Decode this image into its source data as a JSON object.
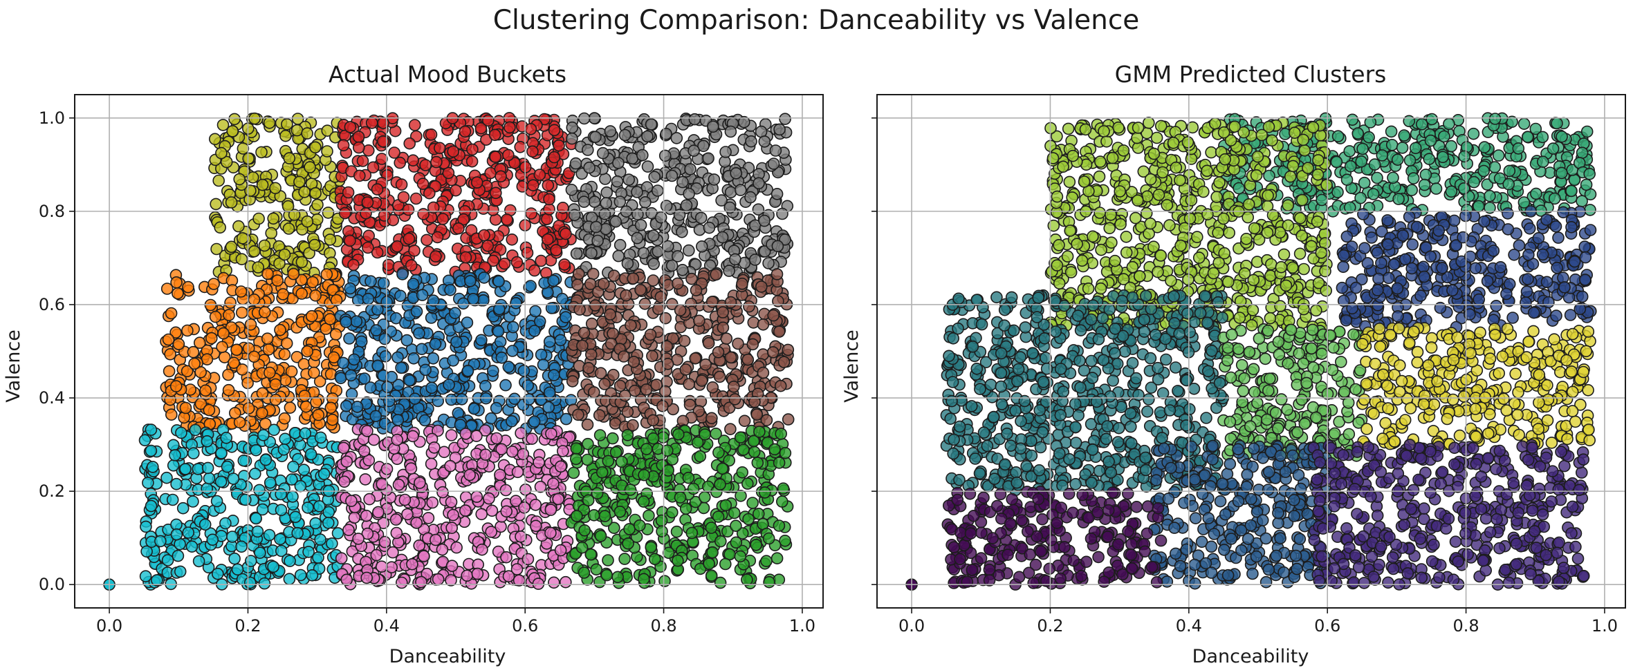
{
  "title": "Clustering Comparison: Danceability vs Valence",
  "chart_data": [
    {
      "type": "scatter",
      "title": "Actual Mood Buckets",
      "xlabel": "Danceability",
      "ylabel": "Valence",
      "xlim": [
        -0.05,
        1.03
      ],
      "ylim": [
        -0.05,
        1.05
      ],
      "xticks": [
        0.0,
        0.2,
        0.4,
        0.6,
        0.8,
        1.0
      ],
      "yticks": [
        0.0,
        0.2,
        0.4,
        0.6,
        0.8,
        1.0
      ],
      "tick_labels": [
        "0.0",
        "0.2",
        "0.4",
        "0.6",
        "0.8",
        "1.0"
      ],
      "grid": true,
      "regions": [
        {
          "color": "#bcbd22",
          "x": [
            0.15,
            0.333
          ],
          "y": [
            0.667,
            1.0
          ]
        },
        {
          "color": "#d62728",
          "x": [
            0.333,
            0.667
          ],
          "y": [
            0.667,
            1.0
          ]
        },
        {
          "color": "#7f7f7f",
          "x": [
            0.667,
            0.98
          ],
          "y": [
            0.667,
            1.0
          ]
        },
        {
          "color": "#ff7f0e",
          "x": [
            0.08,
            0.333
          ],
          "y": [
            0.333,
            0.667
          ]
        },
        {
          "color": "#1f77b4",
          "x": [
            0.333,
            0.667
          ],
          "y": [
            0.333,
            0.667
          ]
        },
        {
          "color": "#8c564b",
          "x": [
            0.667,
            0.98
          ],
          "y": [
            0.333,
            0.667
          ]
        },
        {
          "color": "#17becf",
          "x": [
            0.05,
            0.333
          ],
          "y": [
            0.0,
            0.333
          ]
        },
        {
          "color": "#e377c2",
          "x": [
            0.333,
            0.667
          ],
          "y": [
            0.0,
            0.333
          ]
        },
        {
          "color": "#2ca02c",
          "x": [
            0.667,
            0.98
          ],
          "y": [
            0.0,
            0.333
          ]
        }
      ]
    },
    {
      "type": "scatter",
      "title": "GMM Predicted Clusters",
      "xlabel": "Danceability",
      "ylabel": "Valence",
      "xlim": [
        -0.05,
        1.03
      ],
      "ylim": [
        -0.05,
        1.05
      ],
      "xticks": [
        0.0,
        0.2,
        0.4,
        0.6,
        0.8,
        1.0
      ],
      "yticks": [
        0.0,
        0.2,
        0.4,
        0.6,
        0.8,
        1.0
      ],
      "tick_labels": [
        "0.0",
        "0.2",
        "0.4",
        "0.6",
        "0.8",
        "1.0"
      ],
      "grid": true,
      "regions": [
        {
          "color": "#3aaa78",
          "x": [
            0.45,
            0.98
          ],
          "y": [
            0.8,
            1.0
          ]
        },
        {
          "color": "#9dcc3a",
          "x": [
            0.2,
            0.6
          ],
          "y": [
            0.55,
            0.99
          ]
        },
        {
          "color": "#2e4a8c",
          "x": [
            0.62,
            0.98
          ],
          "y": [
            0.55,
            0.8
          ]
        },
        {
          "color": "#2a7b82",
          "x": [
            0.05,
            0.45
          ],
          "y": [
            0.2,
            0.62
          ]
        },
        {
          "color": "#68c15c",
          "x": [
            0.45,
            0.65
          ],
          "y": [
            0.27,
            0.55
          ]
        },
        {
          "color": "#e0d335",
          "x": [
            0.65,
            0.98
          ],
          "y": [
            0.3,
            0.55
          ]
        },
        {
          "color": "#2c5c8e",
          "x": [
            0.35,
            0.6
          ],
          "y": [
            0.0,
            0.3
          ]
        },
        {
          "color": "#432a7d",
          "x": [
            0.58,
            0.97
          ],
          "y": [
            0.0,
            0.3
          ]
        },
        {
          "color": "#440c54",
          "x": [
            0.05,
            0.36
          ],
          "y": [
            0.0,
            0.2
          ]
        }
      ]
    }
  ]
}
